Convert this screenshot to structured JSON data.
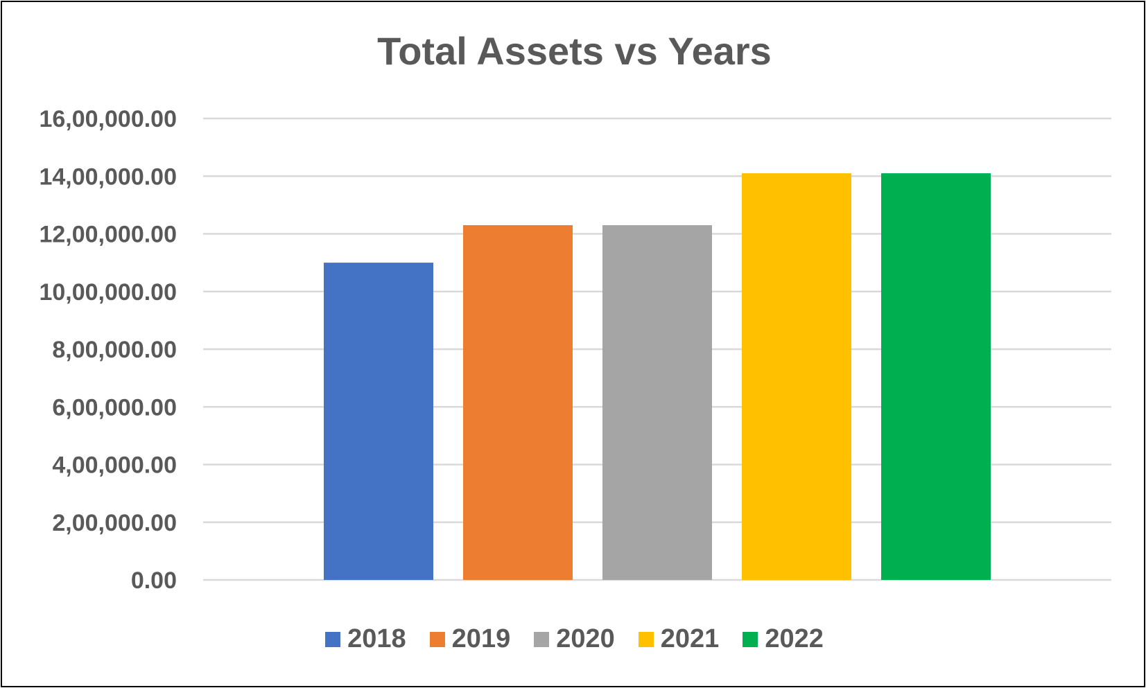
{
  "chart_data": {
    "type": "bar",
    "title": "Total Assets vs Years",
    "xlabel": "",
    "ylabel": "",
    "categories": [
      "2018",
      "2019",
      "2020",
      "2021",
      "2022"
    ],
    "values": [
      1100000,
      1230000,
      1230000,
      1410000,
      1410000
    ],
    "colors": [
      "#4472C4",
      "#ED7D31",
      "#A5A5A5",
      "#FFC000",
      "#00B050"
    ],
    "ylim": [
      0,
      1600000
    ],
    "y_ticks": [
      0,
      200000,
      400000,
      600000,
      800000,
      1000000,
      1200000,
      1400000,
      1600000
    ],
    "y_tick_labels": [
      "0.00",
      "2,00,000.00",
      "4,00,000.00",
      "6,00,000.00",
      "8,00,000.00",
      "10,00,000.00",
      "12,00,000.00",
      "14,00,000.00",
      "16,00,000.00"
    ],
    "grid": true,
    "legend": {
      "position": "bottom",
      "entries": [
        "2018",
        "2019",
        "2020",
        "2021",
        "2022"
      ]
    },
    "gridline_color": "#D9D9D9",
    "text_color": "#595959"
  }
}
